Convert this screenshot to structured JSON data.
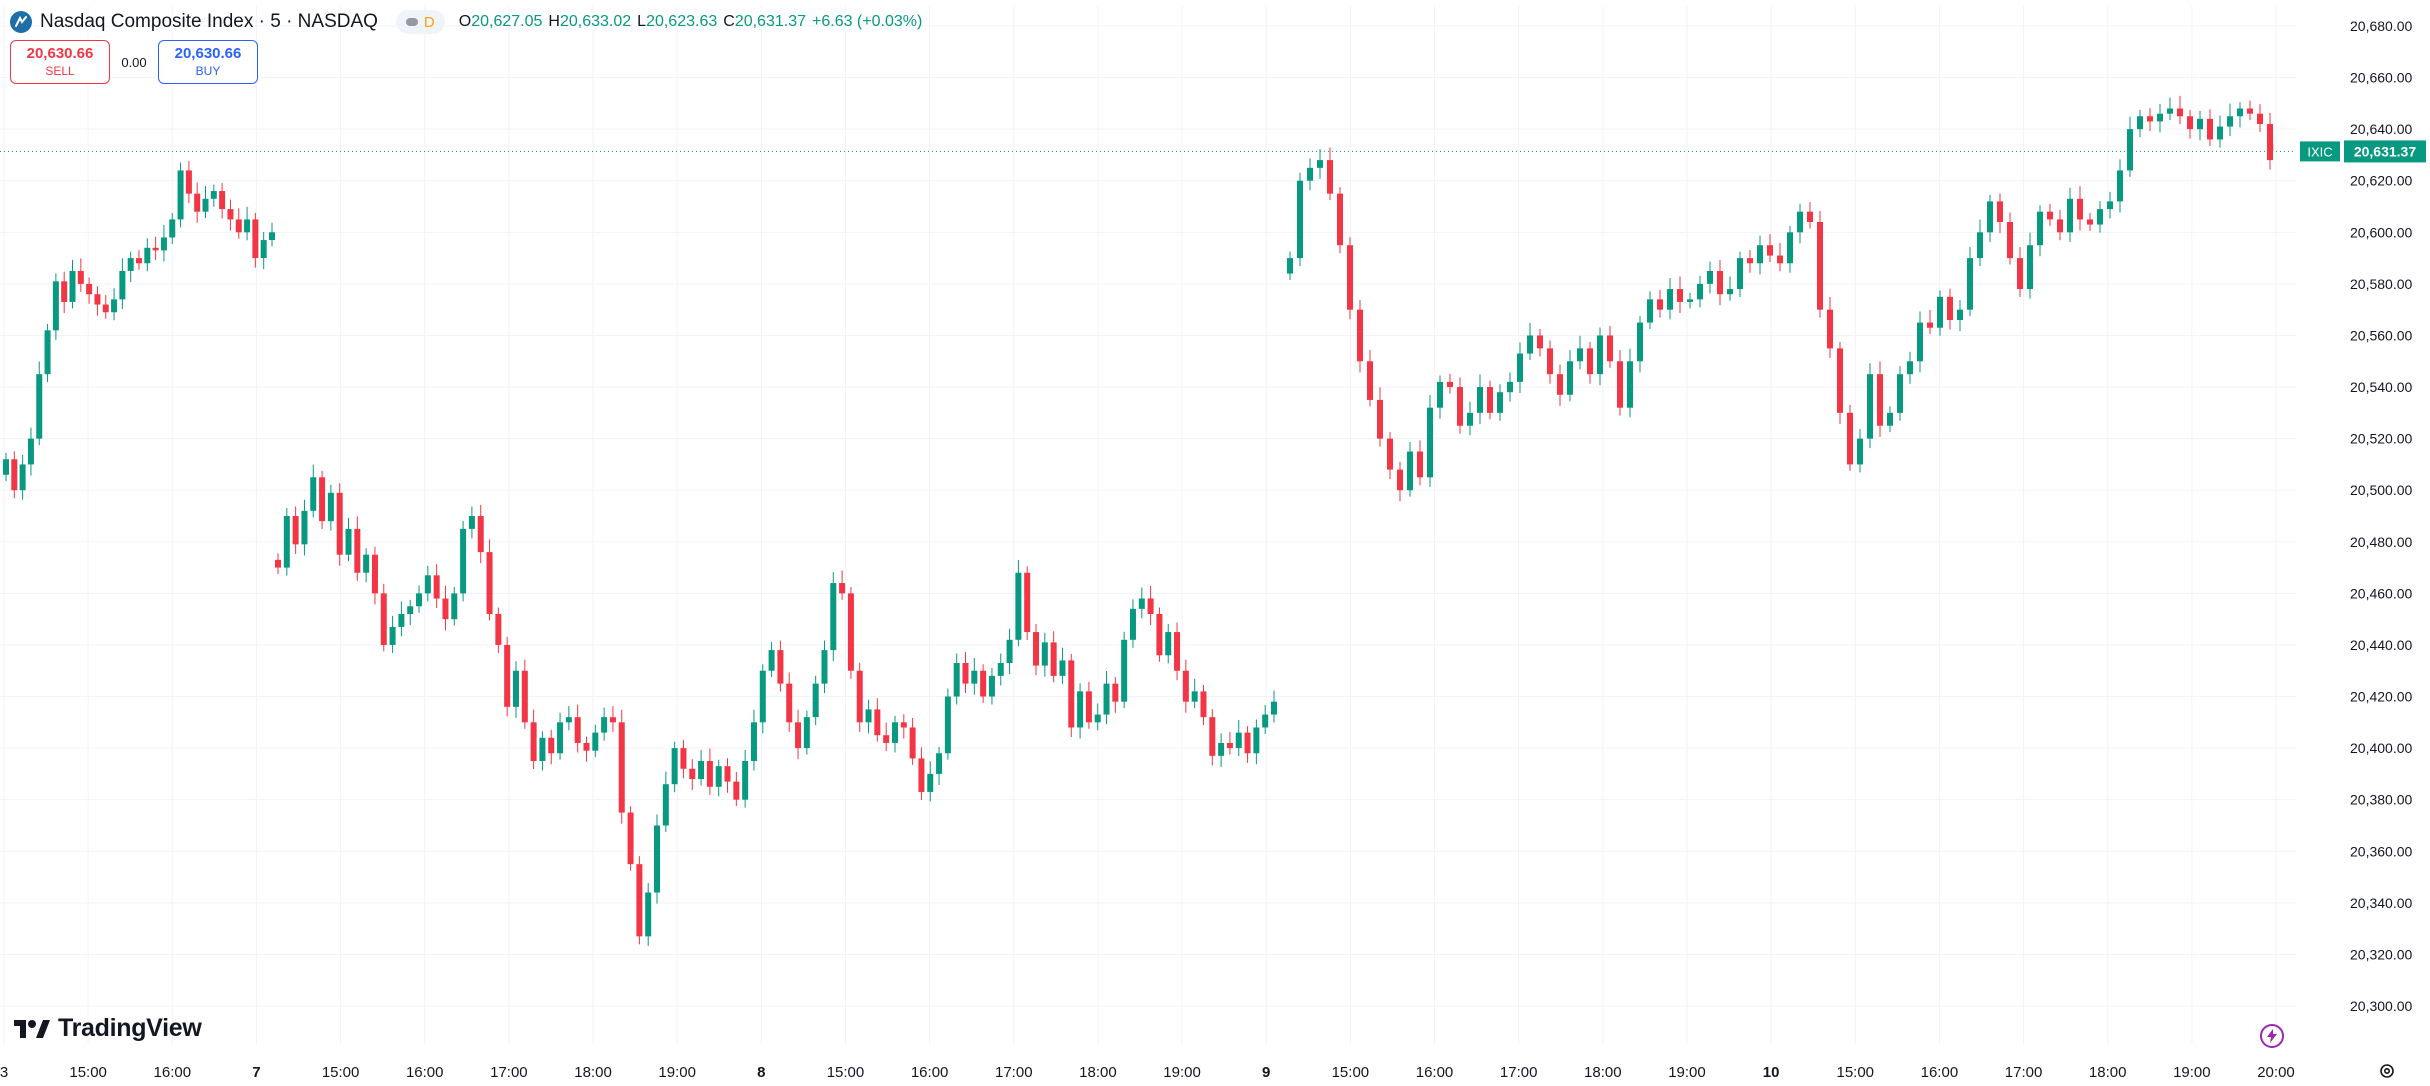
{
  "header": {
    "symbol_title": "Nasdaq Composite Index · 5 · NASDAQ",
    "market_status": "D",
    "ohlc": {
      "o_label": "O",
      "o_value": "20,627.05",
      "h_label": "H",
      "h_value": "20,633.02",
      "l_label": "L",
      "l_value": "20,623.63",
      "c_label": "C",
      "c_value": "20,631.37",
      "change": "+6.63 (+0.03%)"
    }
  },
  "trade": {
    "sell_price": "20,630.66",
    "sell_label": "SELL",
    "spread": "0.00",
    "buy_price": "20,630.66",
    "buy_label": "BUY"
  },
  "branding": {
    "logo_text": "TradingView"
  },
  "icons": {
    "symbol": "nasdaq-logo-icon",
    "bolt": "lightning-bolt-icon",
    "settings": "gear-icon"
  },
  "colors": {
    "up": "#089981",
    "down": "#f23645",
    "grid": "#f0f3fa",
    "price_line": "#089981",
    "axis_text": "#131722"
  },
  "chart_data": {
    "type": "candlestick",
    "symbol": "IXIC",
    "interval": "5",
    "ylim": [
      20300,
      20680
    ],
    "y_ticks": [
      "20,300.00",
      "20,320.00",
      "20,340.00",
      "20,360.00",
      "20,380.00",
      "20,400.00",
      "20,420.00",
      "20,440.00",
      "20,460.00",
      "20,480.00",
      "20,500.00",
      "20,520.00",
      "20,540.00",
      "20,560.00",
      "20,580.00",
      "20,600.00",
      "20,620.00",
      "20,640.00",
      "20,660.00",
      "20,680.00"
    ],
    "x_ticks": [
      "3",
      "15:00",
      "16:00",
      "7",
      "15:00",
      "16:00",
      "17:00",
      "18:00",
      "19:00",
      "8",
      "15:00",
      "16:00",
      "17:00",
      "18:00",
      "19:00",
      "9",
      "15:00",
      "16:00",
      "17:00",
      "18:00",
      "19:00",
      "10",
      "15:00",
      "16:00",
      "17:00",
      "18:00",
      "19:00",
      "20:00"
    ],
    "bold_ticks": [
      "7",
      "8",
      "9",
      "10"
    ],
    "last_price": {
      "label": "IXIC",
      "value": 20631.37,
      "text": "20,631.37"
    },
    "grid": true,
    "segments": [
      {
        "closes": [
          20512,
          20500,
          20510,
          20520,
          20545,
          20562,
          20581,
          20573,
          20585,
          20580,
          20576,
          20572,
          20569,
          20574,
          20585,
          20590,
          20588,
          20594,
          20593,
          20598,
          20605,
          20624,
          20615,
          20608,
          20613,
          20616,
          20609,
          20605,
          20600,
          20605,
          20590,
          20597,
          20600
        ]
      },
      {
        "closes": [
          20470,
          20490,
          20479,
          20492,
          20505,
          20488,
          20499,
          20475,
          20485,
          20468,
          20475,
          20460,
          20440,
          20447,
          20452,
          20455,
          20460,
          20467,
          20458,
          20450,
          20460,
          20485,
          20490,
          20476,
          20452,
          20440,
          20416,
          20430,
          20410,
          20395,
          20404,
          20398,
          20410,
          20412,
          20402,
          20399,
          20406,
          20412,
          20410,
          20375,
          20355,
          20327,
          20344,
          20370,
          20386,
          20400,
          20392,
          20388,
          20395,
          20385,
          20393,
          20387,
          20380,
          20395,
          20410,
          20430,
          20438,
          20425,
          20410,
          20400,
          20412,
          20425,
          20438,
          20464,
          20460,
          20430,
          20410,
          20415,
          20405,
          20402,
          20410,
          20408,
          20396,
          20383,
          20390,
          20398,
          20420,
          20433,
          20425,
          20430,
          20420,
          20428,
          20433,
          20442,
          20468,
          20445,
          20432,
          20441,
          20428,
          20434,
          20408,
          20422,
          20410,
          20413,
          20425,
          20418,
          20442,
          20454,
          20458,
          20452,
          20436,
          20445,
          20430,
          20418,
          20422,
          20412,
          20397,
          20402,
          20400,
          20406,
          20398,
          20408,
          20413,
          20418
        ]
      },
      {
        "closes": [
          20590,
          20620,
          20625,
          20628,
          20615,
          20595,
          20570,
          20550,
          20535,
          20520,
          20508,
          20500,
          20515,
          20505,
          20532,
          20542,
          20540,
          20525,
          20530,
          20540,
          20530,
          20538,
          20542,
          20553,
          20560,
          20555,
          20545,
          20537,
          20550,
          20555,
          20545,
          20560,
          20550,
          20532,
          20550,
          20565,
          20574,
          20570,
          20578,
          20573,
          20574,
          20580,
          20585,
          20576,
          20578,
          20590,
          20588,
          20595,
          20591,
          20588,
          20600,
          20608,
          20604,
          20570,
          20555,
          20530,
          20510,
          20520,
          20545,
          20525,
          20530,
          20545,
          20550,
          20565,
          20563,
          20575,
          20566,
          20570,
          20590,
          20600,
          20612,
          20604,
          20590,
          20578,
          20595,
          20608,
          20605,
          20600,
          20613,
          20605,
          20603,
          20609,
          20612,
          20624,
          20640,
          20645,
          20643,
          20646,
          20648,
          20645,
          20640,
          20644,
          20636,
          20641,
          20645,
          20648,
          20646,
          20642,
          20628
        ]
      },
      {
        "closes": [
          20631.37
        ]
      }
    ]
  }
}
